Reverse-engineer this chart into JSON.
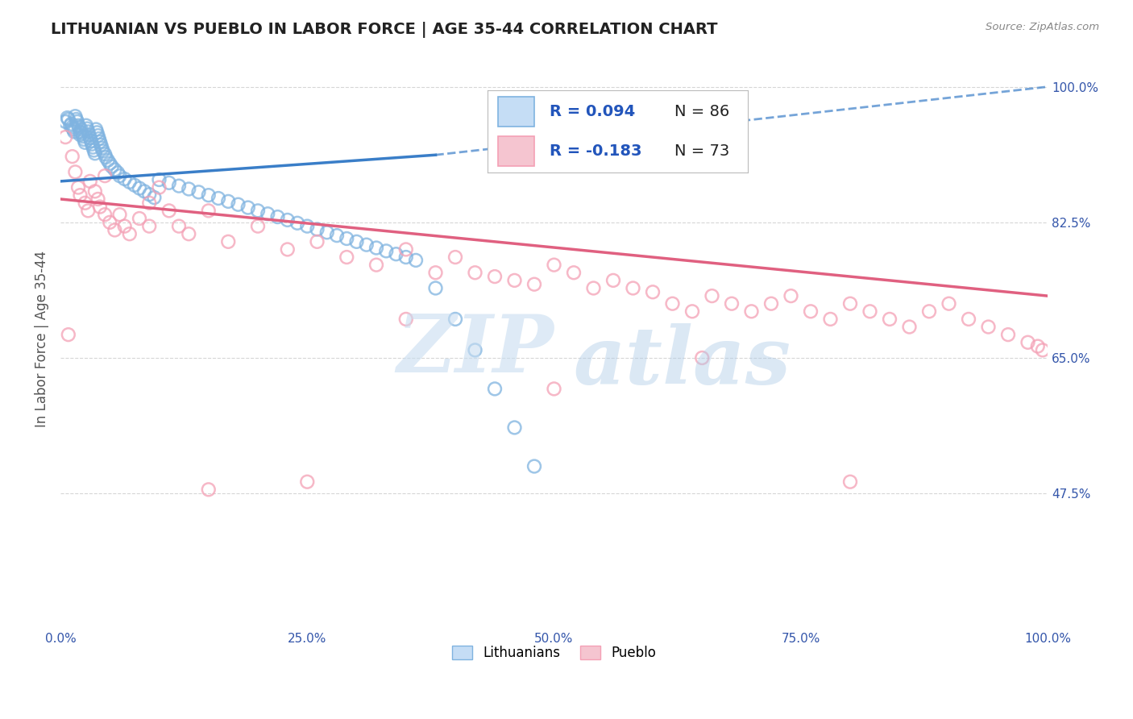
{
  "title": "LITHUANIAN VS PUEBLO IN LABOR FORCE | AGE 35-44 CORRELATION CHART",
  "source_text": "Source: ZipAtlas.com",
  "ylabel": "In Labor Force | Age 35-44",
  "xlim": [
    0.0,
    1.0
  ],
  "ylim": [
    0.3,
    1.05
  ],
  "xticks": [
    0.0,
    0.25,
    0.5,
    0.75,
    1.0
  ],
  "xtick_labels": [
    "0.0%",
    "25.0%",
    "50.0%",
    "75.0%",
    "100.0%"
  ],
  "ytick_labels_right": [
    "100.0%",
    "82.5%",
    "65.0%",
    "47.5%"
  ],
  "ytick_values_right": [
    1.0,
    0.825,
    0.65,
    0.475
  ],
  "grid_color": "#cccccc",
  "background_color": "#ffffff",
  "blue_color": "#7fb3e0",
  "pink_color": "#f4a0b5",
  "legend_r_blue": "R = 0.094",
  "legend_n_blue": "N = 86",
  "legend_r_pink": "R = -0.183",
  "legend_n_pink": "N = 73",
  "legend_label_blue": "Lithuanians",
  "legend_label_pink": "Pueblo",
  "blue_scatter_x": [
    0.005,
    0.007,
    0.008,
    0.01,
    0.011,
    0.012,
    0.013,
    0.014,
    0.015,
    0.016,
    0.017,
    0.018,
    0.019,
    0.02,
    0.02,
    0.021,
    0.022,
    0.023,
    0.024,
    0.025,
    0.026,
    0.027,
    0.028,
    0.029,
    0.03,
    0.031,
    0.032,
    0.033,
    0.034,
    0.035,
    0.036,
    0.037,
    0.038,
    0.039,
    0.04,
    0.041,
    0.042,
    0.043,
    0.045,
    0.046,
    0.048,
    0.05,
    0.052,
    0.055,
    0.058,
    0.06,
    0.065,
    0.07,
    0.075,
    0.08,
    0.085,
    0.09,
    0.095,
    0.1,
    0.11,
    0.12,
    0.13,
    0.14,
    0.15,
    0.16,
    0.17,
    0.18,
    0.19,
    0.2,
    0.21,
    0.22,
    0.23,
    0.24,
    0.25,
    0.26,
    0.27,
    0.28,
    0.29,
    0.3,
    0.31,
    0.32,
    0.33,
    0.34,
    0.35,
    0.36,
    0.38,
    0.4,
    0.42,
    0.44,
    0.46,
    0.48
  ],
  "blue_scatter_y": [
    0.955,
    0.96,
    0.958,
    0.95,
    0.952,
    0.948,
    0.945,
    0.942,
    0.962,
    0.958,
    0.955,
    0.95,
    0.948,
    0.942,
    0.938,
    0.945,
    0.94,
    0.936,
    0.932,
    0.928,
    0.95,
    0.946,
    0.942,
    0.938,
    0.934,
    0.93,
    0.926,
    0.922,
    0.918,
    0.914,
    0.945,
    0.941,
    0.937,
    0.933,
    0.929,
    0.925,
    0.921,
    0.917,
    0.913,
    0.909,
    0.905,
    0.901,
    0.897,
    0.893,
    0.889,
    0.885,
    0.881,
    0.877,
    0.873,
    0.869,
    0.865,
    0.861,
    0.857,
    0.88,
    0.876,
    0.872,
    0.868,
    0.864,
    0.86,
    0.856,
    0.852,
    0.848,
    0.844,
    0.84,
    0.836,
    0.832,
    0.828,
    0.824,
    0.82,
    0.816,
    0.812,
    0.808,
    0.804,
    0.8,
    0.796,
    0.792,
    0.788,
    0.784,
    0.78,
    0.776,
    0.74,
    0.7,
    0.66,
    0.61,
    0.56,
    0.51
  ],
  "pink_scatter_x": [
    0.005,
    0.008,
    0.012,
    0.015,
    0.018,
    0.02,
    0.025,
    0.028,
    0.03,
    0.035,
    0.038,
    0.04,
    0.045,
    0.05,
    0.055,
    0.06,
    0.065,
    0.07,
    0.08,
    0.09,
    0.1,
    0.11,
    0.12,
    0.13,
    0.15,
    0.17,
    0.2,
    0.23,
    0.26,
    0.29,
    0.32,
    0.35,
    0.38,
    0.4,
    0.42,
    0.44,
    0.46,
    0.48,
    0.5,
    0.52,
    0.54,
    0.56,
    0.58,
    0.6,
    0.62,
    0.64,
    0.66,
    0.68,
    0.7,
    0.72,
    0.74,
    0.76,
    0.78,
    0.8,
    0.82,
    0.84,
    0.86,
    0.88,
    0.9,
    0.92,
    0.94,
    0.96,
    0.98,
    0.99,
    0.995,
    0.045,
    0.09,
    0.15,
    0.25,
    0.35,
    0.5,
    0.65,
    0.8
  ],
  "pink_scatter_y": [
    0.935,
    0.68,
    0.91,
    0.89,
    0.87,
    0.86,
    0.85,
    0.84,
    0.878,
    0.865,
    0.855,
    0.845,
    0.835,
    0.825,
    0.815,
    0.835,
    0.82,
    0.81,
    0.83,
    0.85,
    0.87,
    0.84,
    0.82,
    0.81,
    0.84,
    0.8,
    0.82,
    0.79,
    0.8,
    0.78,
    0.77,
    0.79,
    0.76,
    0.78,
    0.76,
    0.755,
    0.75,
    0.745,
    0.77,
    0.76,
    0.74,
    0.75,
    0.74,
    0.735,
    0.72,
    0.71,
    0.73,
    0.72,
    0.71,
    0.72,
    0.73,
    0.71,
    0.7,
    0.72,
    0.71,
    0.7,
    0.69,
    0.71,
    0.72,
    0.7,
    0.69,
    0.68,
    0.67,
    0.665,
    0.66,
    0.885,
    0.82,
    0.48,
    0.49,
    0.7,
    0.61,
    0.65,
    0.49
  ],
  "blue_solid_line_x": [
    0.0,
    0.38
  ],
  "blue_solid_line_y": [
    0.878,
    0.912
  ],
  "blue_dash_line_x": [
    0.38,
    1.0
  ],
  "blue_dash_line_y": [
    0.912,
    1.0
  ],
  "pink_line_x": [
    0.0,
    1.0
  ],
  "pink_line_y": [
    0.855,
    0.73
  ],
  "title_fontsize": 14,
  "axis_label_fontsize": 12,
  "tick_fontsize": 11,
  "legend_fontsize": 14
}
